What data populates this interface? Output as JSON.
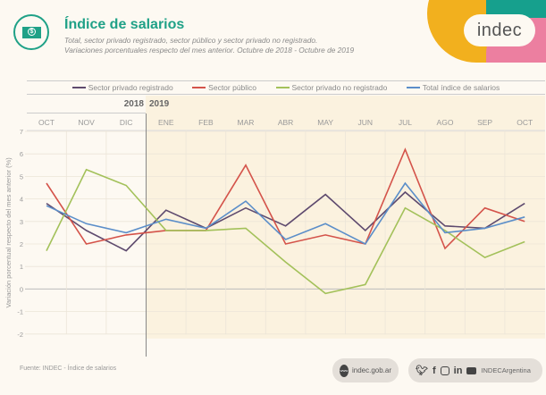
{
  "header": {
    "title": "Índice de salarios",
    "subtitle_line1": "Total, sector privado registrado, sector público y sector privado no registrado.",
    "subtitle_line2": "Variaciones porcentuales respecto del mes anterior. Octubre de 2018 - Octubre de 2019",
    "icon": "money-bill-icon",
    "logo_text": "indec"
  },
  "footer": {
    "source": "Fuente: INDEC - Índice de salarios",
    "web_label": "indec.gob.ar",
    "web_icon_text": "www",
    "social_handle": "INDECArgentina",
    "social_icons": [
      "twitter-icon",
      "facebook-icon",
      "instagram-icon",
      "linkedin-icon",
      "youtube-icon"
    ]
  },
  "chart_data": {
    "type": "line",
    "title": "Índice de salarios",
    "xlabel": "",
    "ylabel": "Variación porcentual respecto del mes anterior (%)",
    "ylim": [
      -2,
      7
    ],
    "yticks": [
      7,
      6,
      5,
      4,
      3,
      2,
      1,
      0,
      -1,
      -2
    ],
    "grid": true,
    "legend_position": "top",
    "year_labels": [
      "2018",
      "2019"
    ],
    "year_split_after_index": 2,
    "categories": [
      "OCT",
      "NOV",
      "DIC",
      "ENE",
      "FEB",
      "MAR",
      "ABR",
      "MAY",
      "JUN",
      "JUL",
      "AGO",
      "SEP",
      "OCT"
    ],
    "series": [
      {
        "name": "Sector privado registrado",
        "color": "#5e4a6e",
        "values": [
          3.8,
          2.6,
          1.7,
          3.5,
          2.7,
          3.6,
          2.8,
          4.2,
          2.6,
          4.3,
          2.8,
          2.7,
          3.8
        ]
      },
      {
        "name": "Sector público",
        "color": "#d4534a",
        "values": [
          4.7,
          2.0,
          2.4,
          2.6,
          2.6,
          5.5,
          2.0,
          2.4,
          2.0,
          6.2,
          1.8,
          3.6,
          3.0
        ]
      },
      {
        "name": "Sector privado no registrado",
        "color": "#a3c15a",
        "values": [
          1.7,
          5.3,
          4.6,
          2.6,
          2.6,
          2.7,
          1.2,
          -0.2,
          0.2,
          3.6,
          2.6,
          1.4,
          2.1
        ]
      },
      {
        "name": "Total índice de salarios",
        "color": "#5b8ec9",
        "values": [
          3.7,
          2.9,
          2.5,
          3.1,
          2.7,
          3.9,
          2.2,
          2.9,
          2.0,
          4.7,
          2.5,
          2.7,
          3.2
        ]
      }
    ]
  }
}
